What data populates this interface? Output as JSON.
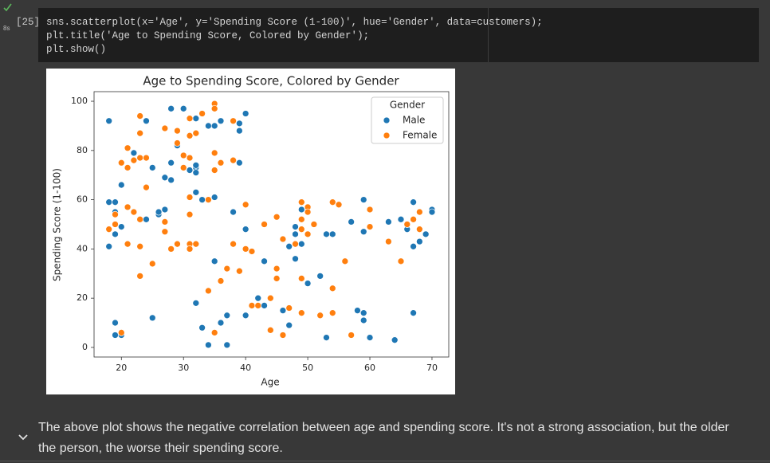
{
  "cell": {
    "exec_count": "[25]",
    "run_time": "8s",
    "code": [
      "sns.scatterplot(x='Age', y='Spending Score (1-100)', hue='Gender', data=customers);",
      "plt.title('Age to Spending Score, Colored by Gender');",
      "plt.show()"
    ]
  },
  "chart_data": {
    "type": "scatter",
    "title": "Age to Spending Score, Colored by Gender",
    "x_label": "Age",
    "y_label": "Spending Score (1-100)",
    "legend_title": "Gender",
    "legend": "upper right",
    "grid": false,
    "xlim": [
      15.6,
      72.7
    ],
    "xticks": [
      20,
      30,
      40,
      50,
      60,
      70
    ],
    "ylim": [
      -3.9,
      103.9
    ],
    "yticks": [
      0,
      20,
      40,
      60,
      80,
      100
    ],
    "series": [
      {
        "name": "Male",
        "color": "#1f77b4",
        "x": [
          18,
          18,
          19,
          19,
          19,
          18,
          20,
          20,
          22,
          24,
          24,
          25,
          25,
          19,
          19,
          20,
          26,
          26,
          27,
          28,
          27,
          28,
          29,
          30,
          28,
          32,
          32,
          32,
          32,
          31,
          32,
          33,
          35,
          34,
          35,
          36,
          39,
          39,
          40,
          38,
          39,
          40,
          43,
          40,
          42,
          43,
          32,
          33,
          34,
          35,
          36,
          37,
          37,
          46,
          47,
          47,
          48,
          48,
          48,
          49,
          49,
          50,
          52,
          53,
          54,
          53,
          57,
          58,
          59,
          59,
          59,
          59,
          60,
          63,
          64,
          65,
          66,
          67,
          67,
          67,
          68,
          69,
          70,
          70
        ],
        "values": [
          92,
          59,
          59,
          55,
          46,
          41,
          49,
          66,
          79,
          92,
          52,
          73,
          12,
          10,
          5,
          5,
          54,
          55,
          56,
          68,
          69,
          75,
          82,
          97,
          97,
          93,
          73,
          74,
          71,
          72,
          63,
          60,
          61,
          90,
          90,
          92,
          91,
          88,
          95,
          55,
          75,
          48,
          35,
          13,
          20,
          17,
          18,
          8,
          1,
          35,
          10,
          13,
          1,
          15,
          9,
          41,
          36,
          46,
          49,
          42,
          56,
          26,
          29,
          46,
          46,
          4,
          51,
          15,
          60,
          47,
          14,
          11,
          4,
          51,
          3,
          52,
          48,
          59,
          41,
          14,
          43,
          46,
          56,
          55
        ]
      },
      {
        "name": "Female",
        "color": "#ff7f0e",
        "x": [
          18,
          19,
          19,
          20,
          21,
          21,
          21,
          21,
          22,
          23,
          22,
          23,
          24,
          24,
          23,
          23,
          23,
          23,
          25,
          20,
          27,
          28,
          27,
          27,
          29,
          29,
          29,
          30,
          30,
          31,
          31,
          31,
          31,
          31,
          31,
          32,
          32,
          31,
          33,
          34,
          34,
          35,
          35,
          35,
          35,
          36,
          35,
          36,
          37,
          38,
          38,
          38,
          39,
          40,
          40,
          41,
          41,
          42,
          43,
          44,
          45,
          44,
          45,
          45,
          46,
          46,
          47,
          48,
          49,
          49,
          49,
          49,
          49,
          50,
          50,
          50,
          51,
          52,
          54,
          54,
          54,
          55,
          56,
          57,
          60,
          60,
          63,
          65,
          66,
          67,
          68,
          68
        ],
        "values": [
          48,
          50,
          54,
          75,
          42,
          81,
          73,
          57,
          55,
          52,
          76,
          77,
          77,
          65,
          94,
          87,
          41,
          29,
          34,
          6,
          89,
          40,
          51,
          47,
          88,
          83,
          42,
          78,
          73,
          86,
          77,
          61,
          54,
          42,
          40,
          42,
          87,
          93,
          95,
          60,
          23,
          99,
          97,
          79,
          72,
          75,
          6,
          27,
          32,
          92,
          76,
          42,
          31,
          58,
          40,
          39,
          17,
          17,
          50,
          20,
          53,
          7,
          32,
          28,
          44,
          5,
          16,
          42,
          48,
          59,
          52,
          28,
          14,
          57,
          55,
          46,
          50,
          13,
          59,
          24,
          14,
          58,
          35,
          5,
          56,
          49,
          43,
          35,
          50,
          52,
          55,
          48
        ]
      }
    ]
  },
  "markdown": {
    "text": "The above plot shows the negative correlation between age and spending score. It's not a strong association, but the older the person, the worse their spending score."
  }
}
